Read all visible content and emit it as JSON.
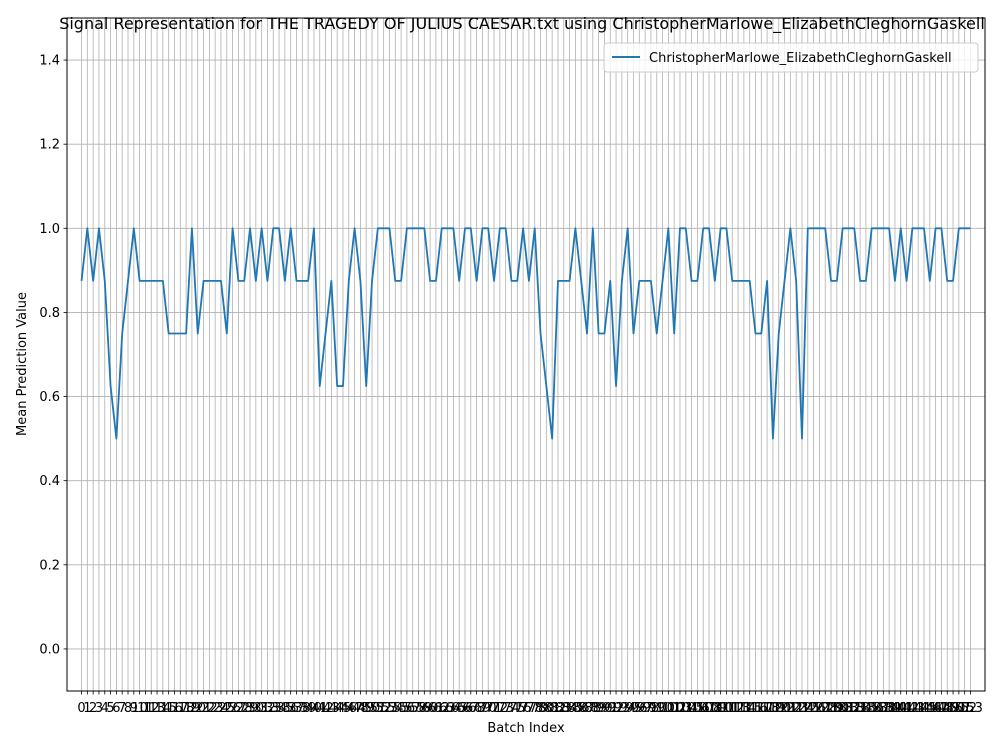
{
  "chart_data": {
    "type": "line",
    "title": "Signal Representation for THE TRAGEDY OF JULIUS CAESAR.txt using ChristopherMarlowe_ElizabethCleghornGaskell",
    "xlabel": "Batch Index",
    "ylabel": "Mean Prediction Value",
    "xlim": [
      -2.5,
      155.5
    ],
    "ylim": [
      -0.1,
      1.5
    ],
    "yticks": [
      0.0,
      0.2,
      0.4,
      0.6,
      0.8,
      1.0,
      1.2,
      1.4
    ],
    "xticks_from": 0,
    "xticks_to": 153,
    "grid": true,
    "legend_position": "top-right",
    "series": [
      {
        "name": "ChristopherMarlowe_ElizabethCleghornGaskell",
        "color": "#1f77b4",
        "x_start": 0,
        "values": [
          0.875,
          1.0,
          0.875,
          1.0,
          0.875,
          0.625,
          0.5,
          0.75,
          0.875,
          1.0,
          0.875,
          0.875,
          0.875,
          0.875,
          0.875,
          0.75,
          0.75,
          0.75,
          0.75,
          1.0,
          0.75,
          0.875,
          0.875,
          0.875,
          0.875,
          0.75,
          1.0,
          0.875,
          0.875,
          1.0,
          0.875,
          1.0,
          0.875,
          1.0,
          1.0,
          0.875,
          1.0,
          0.875,
          0.875,
          0.875,
          1.0,
          0.625,
          0.75,
          0.875,
          0.625,
          0.625,
          0.875,
          1.0,
          0.875,
          0.625,
          0.875,
          1.0,
          1.0,
          1.0,
          0.875,
          0.875,
          1.0,
          1.0,
          1.0,
          1.0,
          0.875,
          0.875,
          1.0,
          1.0,
          1.0,
          0.875,
          1.0,
          1.0,
          0.875,
          1.0,
          1.0,
          0.875,
          1.0,
          1.0,
          0.875,
          0.875,
          1.0,
          0.875,
          1.0,
          0.75,
          0.625,
          0.5,
          0.875,
          0.875,
          0.875,
          1.0,
          0.875,
          0.75,
          1.0,
          0.75,
          0.75,
          0.875,
          0.625,
          0.875,
          1.0,
          0.75,
          0.875,
          0.875,
          0.875,
          0.75,
          0.875,
          1.0,
          0.75,
          1.0,
          1.0,
          0.875,
          0.875,
          1.0,
          1.0,
          0.875,
          1.0,
          1.0,
          0.875,
          0.875,
          0.875,
          0.875,
          0.75,
          0.75,
          0.875,
          0.5,
          0.75,
          0.875,
          1.0,
          0.875,
          0.5,
          1.0,
          1.0,
          1.0,
          1.0,
          0.875,
          0.875,
          1.0,
          1.0,
          1.0,
          0.875,
          0.875,
          1.0,
          1.0,
          1.0,
          1.0,
          0.875,
          1.0,
          0.875,
          1.0,
          1.0,
          1.0,
          0.875,
          1.0,
          1.0,
          0.875,
          0.875,
          1.0,
          1.0,
          1.0
        ]
      }
    ]
  }
}
